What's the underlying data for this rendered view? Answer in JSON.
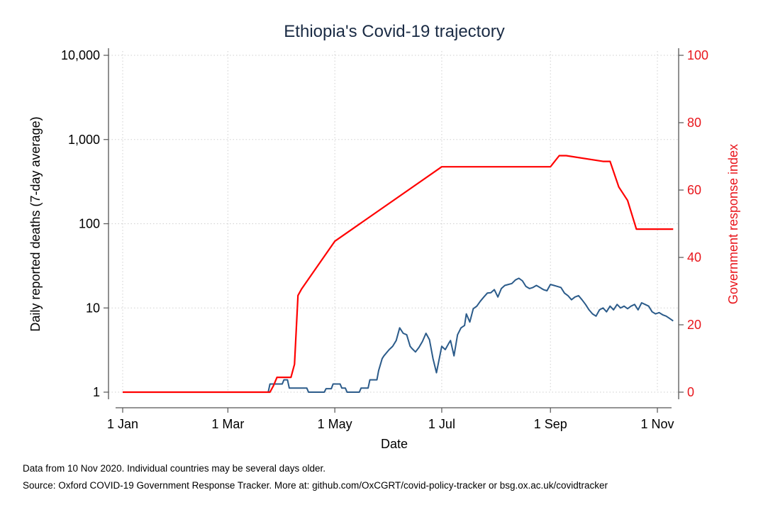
{
  "chart_data": {
    "type": "line",
    "title": "Ethiopia's Covid-19 trajectory",
    "xlabel": "Date",
    "ylabel": "Daily reported deaths (7-day average)",
    "y2label": "Government response index",
    "x_ticks": [
      "1 Jan",
      "1 Mar",
      "1 May",
      "1 Jul",
      "1 Sep",
      "1 Nov"
    ],
    "y_ticks": [
      "1",
      "10",
      "100",
      "1,000",
      "10,000"
    ],
    "y2_ticks": [
      "0",
      "20",
      "40",
      "60",
      "80",
      "100"
    ],
    "y_scale": "log",
    "ylim": [
      1,
      10000
    ],
    "y2lim": [
      0,
      100
    ],
    "grid": true,
    "colors": {
      "deaths": "#2b5b8a",
      "response": "#ff0000",
      "right_axis": "#e8161c"
    },
    "series": [
      {
        "axis": "left",
        "x": [
          "2020-01-01",
          "2020-03-01",
          "2020-03-24",
          "2020-03-25",
          "2020-04-01",
          "2020-04-02",
          "2020-04-04",
          "2020-04-05",
          "2020-04-15",
          "2020-04-16",
          "2020-04-21",
          "2020-04-22",
          "2020-04-25",
          "2020-04-26",
          "2020-04-29",
          "2020-04-30",
          "2020-05-04",
          "2020-05-05",
          "2020-05-07",
          "2020-05-08",
          "2020-05-12",
          "2020-05-13",
          "2020-05-15",
          "2020-05-16",
          "2020-05-20",
          "2020-05-21",
          "2020-05-25",
          "2020-05-26",
          "2020-05-28",
          "2020-05-29",
          "2020-06-01",
          "2020-06-03",
          "2020-06-05",
          "2020-06-07",
          "2020-06-09",
          "2020-06-11",
          "2020-06-13",
          "2020-06-14",
          "2020-06-16",
          "2020-06-18",
          "2020-06-20",
          "2020-06-22",
          "2020-06-24",
          "2020-06-26",
          "2020-06-28",
          "2020-07-01",
          "2020-07-03",
          "2020-07-05",
          "2020-07-06",
          "2020-07-08",
          "2020-07-10",
          "2020-07-12",
          "2020-07-14",
          "2020-07-15",
          "2020-07-17",
          "2020-07-19",
          "2020-07-21",
          "2020-07-23",
          "2020-07-25",
          "2020-07-27",
          "2020-07-29",
          "2020-07-31",
          "2020-08-02",
          "2020-08-04",
          "2020-08-06",
          "2020-08-08",
          "2020-08-10",
          "2020-08-12",
          "2020-08-14",
          "2020-08-16",
          "2020-08-18",
          "2020-08-20",
          "2020-08-22",
          "2020-08-24",
          "2020-08-26",
          "2020-08-28",
          "2020-08-30",
          "2020-09-01",
          "2020-09-03",
          "2020-09-05",
          "2020-09-07",
          "2020-09-09",
          "2020-09-11",
          "2020-09-13",
          "2020-09-15",
          "2020-09-17",
          "2020-09-19",
          "2020-09-21",
          "2020-09-23",
          "2020-09-25",
          "2020-09-27",
          "2020-09-29",
          "2020-10-01",
          "2020-10-03",
          "2020-10-05",
          "2020-10-07",
          "2020-10-09",
          "2020-10-11",
          "2020-10-13",
          "2020-10-15",
          "2020-10-17",
          "2020-10-19",
          "2020-10-21",
          "2020-10-23",
          "2020-10-25",
          "2020-10-27",
          "2020-10-29",
          "2020-10-31",
          "2020-11-02",
          "2020-11-04",
          "2020-11-06",
          "2020-11-08",
          "2020-11-10"
        ],
        "y": [
          1,
          1,
          1,
          1.25,
          1.25,
          1.4,
          1.4,
          1.12,
          1.12,
          1,
          1,
          1,
          1,
          1.1,
          1.1,
          1.25,
          1.25,
          1.12,
          1.12,
          1,
          1,
          1,
          1,
          1.12,
          1.12,
          1.4,
          1.4,
          1.8,
          2.5,
          2.7,
          3.2,
          3.5,
          4.1,
          5.8,
          5.0,
          4.8,
          3.5,
          3.3,
          3.0,
          3.4,
          4.0,
          5.0,
          4.2,
          2.5,
          1.7,
          3.5,
          3.2,
          3.8,
          4.1,
          2.7,
          4.8,
          5.8,
          6.2,
          8.5,
          6.8,
          9.8,
          10.5,
          12.0,
          13.5,
          15.0,
          15.2,
          16.5,
          13.5,
          17.0,
          18.5,
          19.0,
          19.5,
          21.5,
          22.5,
          21.0,
          18.0,
          17.0,
          17.5,
          18.5,
          17.5,
          16.5,
          16.0,
          19.0,
          18.5,
          18.0,
          17.5,
          15.0,
          14.0,
          12.5,
          13.5,
          14.0,
          12.5,
          11.0,
          9.5,
          8.5,
          8.0,
          9.5,
          10.0,
          9.0,
          10.5,
          9.5,
          11.0,
          10.0,
          10.5,
          9.8,
          10.5,
          11.0,
          9.5,
          11.5,
          11.0,
          10.5,
          9.0,
          8.5,
          8.8,
          8.3,
          8.0,
          7.5,
          7.0
        ]
      },
      {
        "axis": "right",
        "x": [
          "2020-01-01",
          "2020-02-26",
          "2020-03-01",
          "2020-03-14",
          "2020-03-16",
          "2020-03-18",
          "2020-03-20",
          "2020-03-22",
          "2020-03-23",
          "2020-03-25",
          "2020-03-27",
          "2020-03-29",
          "2020-04-01",
          "2020-04-06",
          "2020-04-08",
          "2020-04-10",
          "2020-04-12",
          "2020-05-01",
          "2020-07-01",
          "2020-07-10",
          "2020-09-01",
          "2020-09-06",
          "2020-09-10",
          "2020-10-01",
          "2020-10-05",
          "2020-10-10",
          "2020-10-15",
          "2020-10-20",
          "2020-10-25",
          "2020-11-01",
          "2020-11-10"
        ],
        "y": [
          0,
          0,
          0,
          0,
          0,
          0,
          0,
          0,
          0,
          0,
          1.9,
          4.4,
          4.4,
          4.4,
          8.3,
          28.7,
          30.6,
          44.8,
          66.9,
          66.9,
          66.9,
          70.2,
          70.2,
          68.5,
          68.5,
          60.9,
          56.9,
          48.4,
          48.4,
          48.4,
          48.4
        ]
      }
    ]
  },
  "notes": [
    "Data from 10 Nov 2020. Individual countries may be several days older.",
    "Source: Oxford COVID-19 Government Response Tracker. More at: github.com/OxCGRT/covid-policy-tracker or bsg.ox.ac.uk/covidtracker"
  ]
}
